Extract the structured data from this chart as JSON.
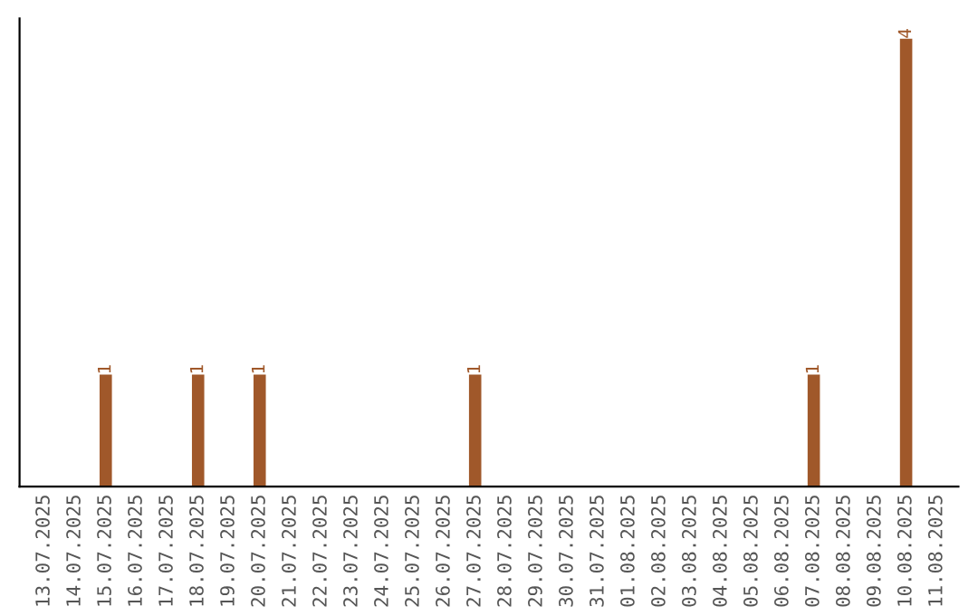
{
  "chart_data": {
    "type": "bar",
    "categories": [
      "13.07.2025",
      "14.07.2025",
      "15.07.2025",
      "16.07.2025",
      "17.07.2025",
      "18.07.2025",
      "19.07.2025",
      "20.07.2025",
      "21.07.2025",
      "22.07.2025",
      "23.07.2025",
      "24.07.2025",
      "25.07.2025",
      "26.07.2025",
      "27.07.2025",
      "28.07.2025",
      "29.07.2025",
      "30.07.2025",
      "31.07.2025",
      "01.08.2025",
      "02.08.2025",
      "03.08.2025",
      "04.08.2025",
      "05.08.2025",
      "06.08.2025",
      "07.08.2025",
      "08.08.2025",
      "09.08.2025",
      "10.08.2025",
      "11.08.2025"
    ],
    "values": [
      0,
      0,
      1,
      0,
      0,
      1,
      0,
      1,
      0,
      0,
      0,
      0,
      0,
      0,
      1,
      0,
      0,
      0,
      0,
      0,
      0,
      0,
      0,
      0,
      0,
      1,
      0,
      0,
      4,
      0
    ],
    "value_labels": [
      null,
      null,
      "1",
      null,
      null,
      "1",
      null,
      "1",
      null,
      null,
      null,
      null,
      null,
      null,
      "1",
      null,
      null,
      null,
      null,
      null,
      null,
      null,
      null,
      null,
      null,
      "1",
      null,
      null,
      "4",
      null
    ],
    "color": "#a0582a",
    "tick_labels": "x",
    "grid": false
  }
}
